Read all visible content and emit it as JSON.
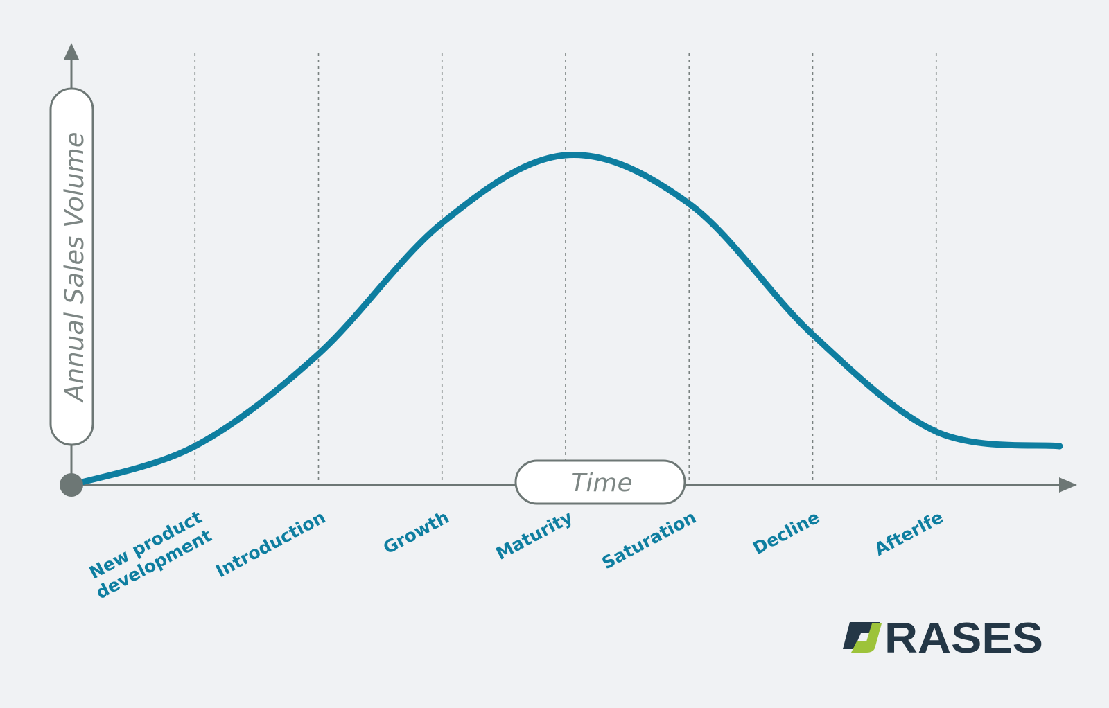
{
  "chart_data": {
    "type": "line",
    "ylabel": "Annual Sales Volume",
    "xlabel": "Time",
    "categories": [
      "New product development",
      "Introduction",
      "Growth",
      "Maturity",
      "Saturation",
      "Decline",
      "Afterlife"
    ],
    "category_label_lines": [
      [
        "New product",
        "development"
      ],
      [
        "Introduction"
      ],
      [
        "Growth"
      ],
      [
        "Maturity"
      ],
      [
        "Saturation"
      ],
      [
        "Decline"
      ],
      [
        "Afterlfe"
      ]
    ],
    "x": [
      0,
      1,
      2,
      3,
      4,
      5,
      6,
      7,
      8
    ],
    "y": [
      0,
      8,
      27,
      54,
      68,
      58,
      31,
      11,
      8
    ],
    "xlim": [
      0,
      8
    ],
    "ylim": [
      0,
      100
    ],
    "gridlines": "vertical, dotted",
    "legend": "none"
  },
  "colors": {
    "background": "#f0f2f4",
    "curve": "#0e7ea0",
    "axis": "#6d7775",
    "grid": "#7a8280",
    "stage_label": "#0e7ea0",
    "logo_dark": "#243746",
    "logo_accent": "#9dc33a"
  },
  "logo": {
    "text": "ORASES"
  }
}
